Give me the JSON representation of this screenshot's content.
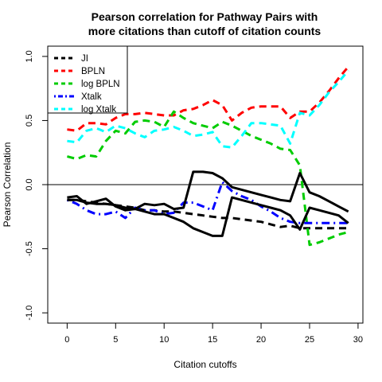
{
  "chart_data": {
    "type": "line",
    "title_line1": "Pearson correlation for Pathway Pairs with",
    "title_line2": "more citations than cutoff of citation counts",
    "xlabel": "Citation cutoffs",
    "ylabel": "Pearson Correlation",
    "xlim": [
      -2,
      30.5
    ],
    "ylim": [
      -1.08,
      1.08
    ],
    "x_ticks": [
      0,
      5,
      10,
      15,
      20,
      25,
      30
    ],
    "y_ticks": [
      -1.0,
      -0.5,
      0.0,
      0.5,
      1.0
    ],
    "y_tick_labels": [
      "-1.0",
      "-0.5",
      "0.0",
      "0.5",
      "1.0"
    ],
    "reference_line_y": 0,
    "grid": false,
    "legend_position": "top-left",
    "series": [
      {
        "name": "JI",
        "color": "#000000",
        "style": "dashed",
        "points": [
          [
            0,
            -0.12
          ],
          [
            1,
            -0.12
          ],
          [
            2,
            -0.13
          ],
          [
            3,
            -0.14
          ],
          [
            4,
            -0.15
          ],
          [
            5,
            -0.16
          ],
          [
            6,
            -0.17
          ],
          [
            7,
            -0.18
          ],
          [
            8,
            -0.2
          ],
          [
            9,
            -0.2
          ],
          [
            10,
            -0.21
          ],
          [
            11,
            -0.21
          ],
          [
            12,
            -0.22
          ],
          [
            13,
            -0.23
          ],
          [
            14,
            -0.24
          ],
          [
            15,
            -0.25
          ],
          [
            16,
            -0.26
          ],
          [
            17,
            -0.26
          ],
          [
            18,
            -0.27
          ],
          [
            19,
            -0.28
          ],
          [
            20,
            -0.29
          ],
          [
            21,
            -0.31
          ],
          [
            22,
            -0.33
          ],
          [
            23,
            -0.32
          ],
          [
            24,
            -0.34
          ],
          [
            25,
            -0.34
          ],
          [
            26,
            -0.34
          ],
          [
            27,
            -0.34
          ],
          [
            28,
            -0.34
          ],
          [
            29,
            -0.34
          ]
        ]
      },
      {
        "name": "BPLN",
        "color": "#ff0000",
        "style": "dashed",
        "points": [
          [
            0,
            0.43
          ],
          [
            1,
            0.42
          ],
          [
            2,
            0.48
          ],
          [
            3,
            0.48
          ],
          [
            4,
            0.47
          ],
          [
            5,
            0.52
          ],
          [
            6,
            0.55
          ],
          [
            7,
            0.55
          ],
          [
            8,
            0.56
          ],
          [
            9,
            0.55
          ],
          [
            10,
            0.54
          ],
          [
            11,
            0.54
          ],
          [
            12,
            0.58
          ],
          [
            13,
            0.59
          ],
          [
            14,
            0.62
          ],
          [
            15,
            0.66
          ],
          [
            16,
            0.62
          ],
          [
            17,
            0.5
          ],
          [
            18,
            0.56
          ],
          [
            19,
            0.6
          ],
          [
            20,
            0.61
          ],
          [
            21,
            0.61
          ],
          [
            22,
            0.61
          ],
          [
            23,
            0.52
          ],
          [
            24,
            0.57
          ],
          [
            25,
            0.57
          ],
          [
            26,
            0.64
          ],
          [
            27,
            0.73
          ],
          [
            28,
            0.83
          ],
          [
            29,
            0.92
          ]
        ]
      },
      {
        "name": "log BPLN",
        "color": "#00cc00",
        "style": "dashed",
        "points": [
          [
            0,
            0.22
          ],
          [
            1,
            0.2
          ],
          [
            2,
            0.23
          ],
          [
            3,
            0.22
          ],
          [
            4,
            0.34
          ],
          [
            5,
            0.42
          ],
          [
            6,
            0.4
          ],
          [
            7,
            0.49
          ],
          [
            8,
            0.5
          ],
          [
            9,
            0.49
          ],
          [
            10,
            0.45
          ],
          [
            11,
            0.57
          ],
          [
            12,
            0.52
          ],
          [
            13,
            0.48
          ],
          [
            14,
            0.46
          ],
          [
            15,
            0.44
          ],
          [
            16,
            0.49
          ],
          [
            17,
            0.46
          ],
          [
            18,
            0.42
          ],
          [
            19,
            0.38
          ],
          [
            20,
            0.35
          ],
          [
            21,
            0.32
          ],
          [
            22,
            0.28
          ],
          [
            23,
            0.27
          ],
          [
            24,
            0.15
          ],
          [
            25,
            -0.47
          ],
          [
            26,
            -0.45
          ],
          [
            27,
            -0.42
          ],
          [
            28,
            -0.39
          ],
          [
            29,
            -0.37
          ]
        ]
      },
      {
        "name": "Xtalk",
        "color": "#0000ff",
        "style": "dotdash",
        "points": [
          [
            0,
            -0.12
          ],
          [
            1,
            -0.15
          ],
          [
            2,
            -0.2
          ],
          [
            3,
            -0.23
          ],
          [
            4,
            -0.23
          ],
          [
            5,
            -0.21
          ],
          [
            6,
            -0.26
          ],
          [
            7,
            -0.18
          ],
          [
            8,
            -0.2
          ],
          [
            9,
            -0.2
          ],
          [
            10,
            -0.23
          ],
          [
            11,
            -0.22
          ],
          [
            12,
            -0.14
          ],
          [
            13,
            -0.14
          ],
          [
            14,
            -0.17
          ],
          [
            15,
            -0.2
          ],
          [
            16,
            0.02
          ],
          [
            17,
            -0.05
          ],
          [
            18,
            -0.09
          ],
          [
            19,
            -0.12
          ],
          [
            20,
            -0.17
          ],
          [
            21,
            -0.21
          ],
          [
            22,
            -0.26
          ],
          [
            23,
            -0.29
          ],
          [
            24,
            -0.3
          ],
          [
            25,
            -0.3
          ],
          [
            26,
            -0.3
          ],
          [
            27,
            -0.3
          ],
          [
            28,
            -0.3
          ],
          [
            29,
            -0.3
          ]
        ]
      },
      {
        "name": "log Xtalk",
        "color": "#00ffff",
        "style": "dashed",
        "points": [
          [
            0,
            0.34
          ],
          [
            1,
            0.33
          ],
          [
            2,
            0.42
          ],
          [
            3,
            0.44
          ],
          [
            4,
            0.41
          ],
          [
            5,
            0.46
          ],
          [
            6,
            0.44
          ],
          [
            7,
            0.4
          ],
          [
            8,
            0.37
          ],
          [
            9,
            0.42
          ],
          [
            10,
            0.43
          ],
          [
            11,
            0.45
          ],
          [
            12,
            0.42
          ],
          [
            13,
            0.38
          ],
          [
            14,
            0.39
          ],
          [
            15,
            0.41
          ],
          [
            16,
            0.3
          ],
          [
            17,
            0.29
          ],
          [
            18,
            0.38
          ],
          [
            19,
            0.48
          ],
          [
            20,
            0.48
          ],
          [
            21,
            0.47
          ],
          [
            22,
            0.46
          ],
          [
            23,
            0.32
          ],
          [
            24,
            0.56
          ],
          [
            25,
            0.54
          ],
          [
            26,
            0.62
          ],
          [
            27,
            0.72
          ],
          [
            28,
            0.8
          ],
          [
            29,
            0.89
          ]
        ]
      },
      {
        "name": "",
        "color": "#000000",
        "style": "solid",
        "points": [
          [
            0,
            -0.1
          ],
          [
            1,
            -0.09
          ],
          [
            2,
            -0.15
          ],
          [
            3,
            -0.13
          ],
          [
            4,
            -0.11
          ],
          [
            5,
            -0.17
          ],
          [
            6,
            -0.2
          ],
          [
            7,
            -0.19
          ],
          [
            8,
            -0.15
          ],
          [
            9,
            -0.16
          ],
          [
            10,
            -0.15
          ],
          [
            11,
            -0.19
          ],
          [
            12,
            -0.18
          ],
          [
            13,
            0.1
          ],
          [
            14,
            0.1
          ],
          [
            15,
            0.09
          ],
          [
            16,
            0.05
          ],
          [
            17,
            -0.02
          ],
          [
            18,
            -0.04
          ],
          [
            19,
            -0.06
          ],
          [
            20,
            -0.08
          ],
          [
            21,
            -0.1
          ],
          [
            22,
            -0.12
          ],
          [
            23,
            -0.13
          ],
          [
            24,
            0.09
          ],
          [
            25,
            -0.06
          ],
          [
            26,
            -0.09
          ],
          [
            27,
            -0.13
          ],
          [
            28,
            -0.17
          ],
          [
            29,
            -0.21
          ]
        ]
      },
      {
        "name": "",
        "color": "#000000",
        "style": "solid",
        "points": [
          [
            0,
            -0.12
          ],
          [
            1,
            -0.12
          ],
          [
            2,
            -0.14
          ],
          [
            3,
            -0.15
          ],
          [
            4,
            -0.15
          ],
          [
            5,
            -0.16
          ],
          [
            6,
            -0.18
          ],
          [
            7,
            -0.19
          ],
          [
            8,
            -0.21
          ],
          [
            9,
            -0.23
          ],
          [
            10,
            -0.23
          ],
          [
            11,
            -0.26
          ],
          [
            12,
            -0.29
          ],
          [
            13,
            -0.34
          ],
          [
            14,
            -0.37
          ],
          [
            15,
            -0.4
          ],
          [
            16,
            -0.4
          ],
          [
            17,
            -0.1
          ],
          [
            18,
            -0.12
          ],
          [
            19,
            -0.14
          ],
          [
            20,
            -0.16
          ],
          [
            21,
            -0.18
          ],
          [
            22,
            -0.2
          ],
          [
            23,
            -0.24
          ],
          [
            24,
            -0.35
          ],
          [
            25,
            -0.18
          ],
          [
            26,
            -0.2
          ],
          [
            27,
            -0.22
          ],
          [
            28,
            -0.24
          ],
          [
            29,
            -0.3
          ]
        ]
      }
    ]
  }
}
